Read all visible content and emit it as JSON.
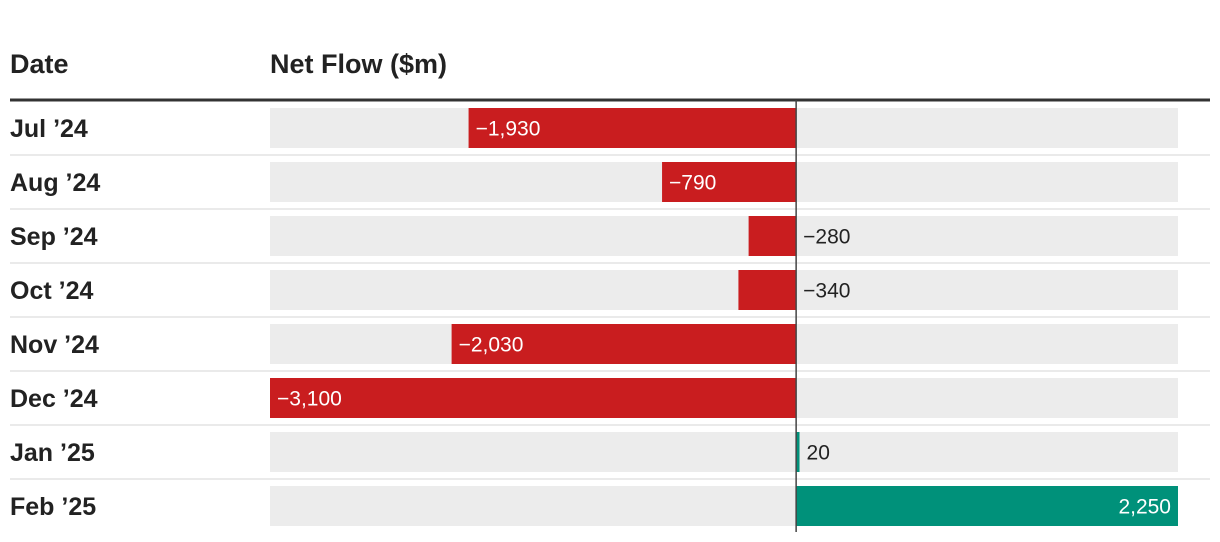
{
  "header": {
    "date_label": "Date",
    "value_label": "Net Flow ($m)"
  },
  "colors": {
    "negative": "#c91d1f",
    "positive": "#00917a",
    "track": "#ececec",
    "header_rule": "#333333",
    "row_rule": "#e3e3e3",
    "zero_line": "#444444",
    "label_on_bar": "#ffffff",
    "label_off_bar": "#222222"
  },
  "chart_data": {
    "type": "bar",
    "orientation": "horizontal",
    "xlabel": "Net Flow ($m)",
    "ylabel": "Date",
    "xlim": [
      -3100,
      2250
    ],
    "grid": false,
    "categories": [
      "Jul ’24",
      "Aug ’24",
      "Sep ’24",
      "Oct ’24",
      "Nov ’24",
      "Dec ’24",
      "Jan ’25",
      "Feb ’25"
    ],
    "values": [
      -1930,
      -790,
      -280,
      -340,
      -2030,
      -3100,
      20,
      2250
    ],
    "value_labels": [
      "−1,930",
      "−790",
      "−280",
      "−340",
      "−2,030",
      "−3,100",
      "20",
      "2,250"
    ]
  }
}
